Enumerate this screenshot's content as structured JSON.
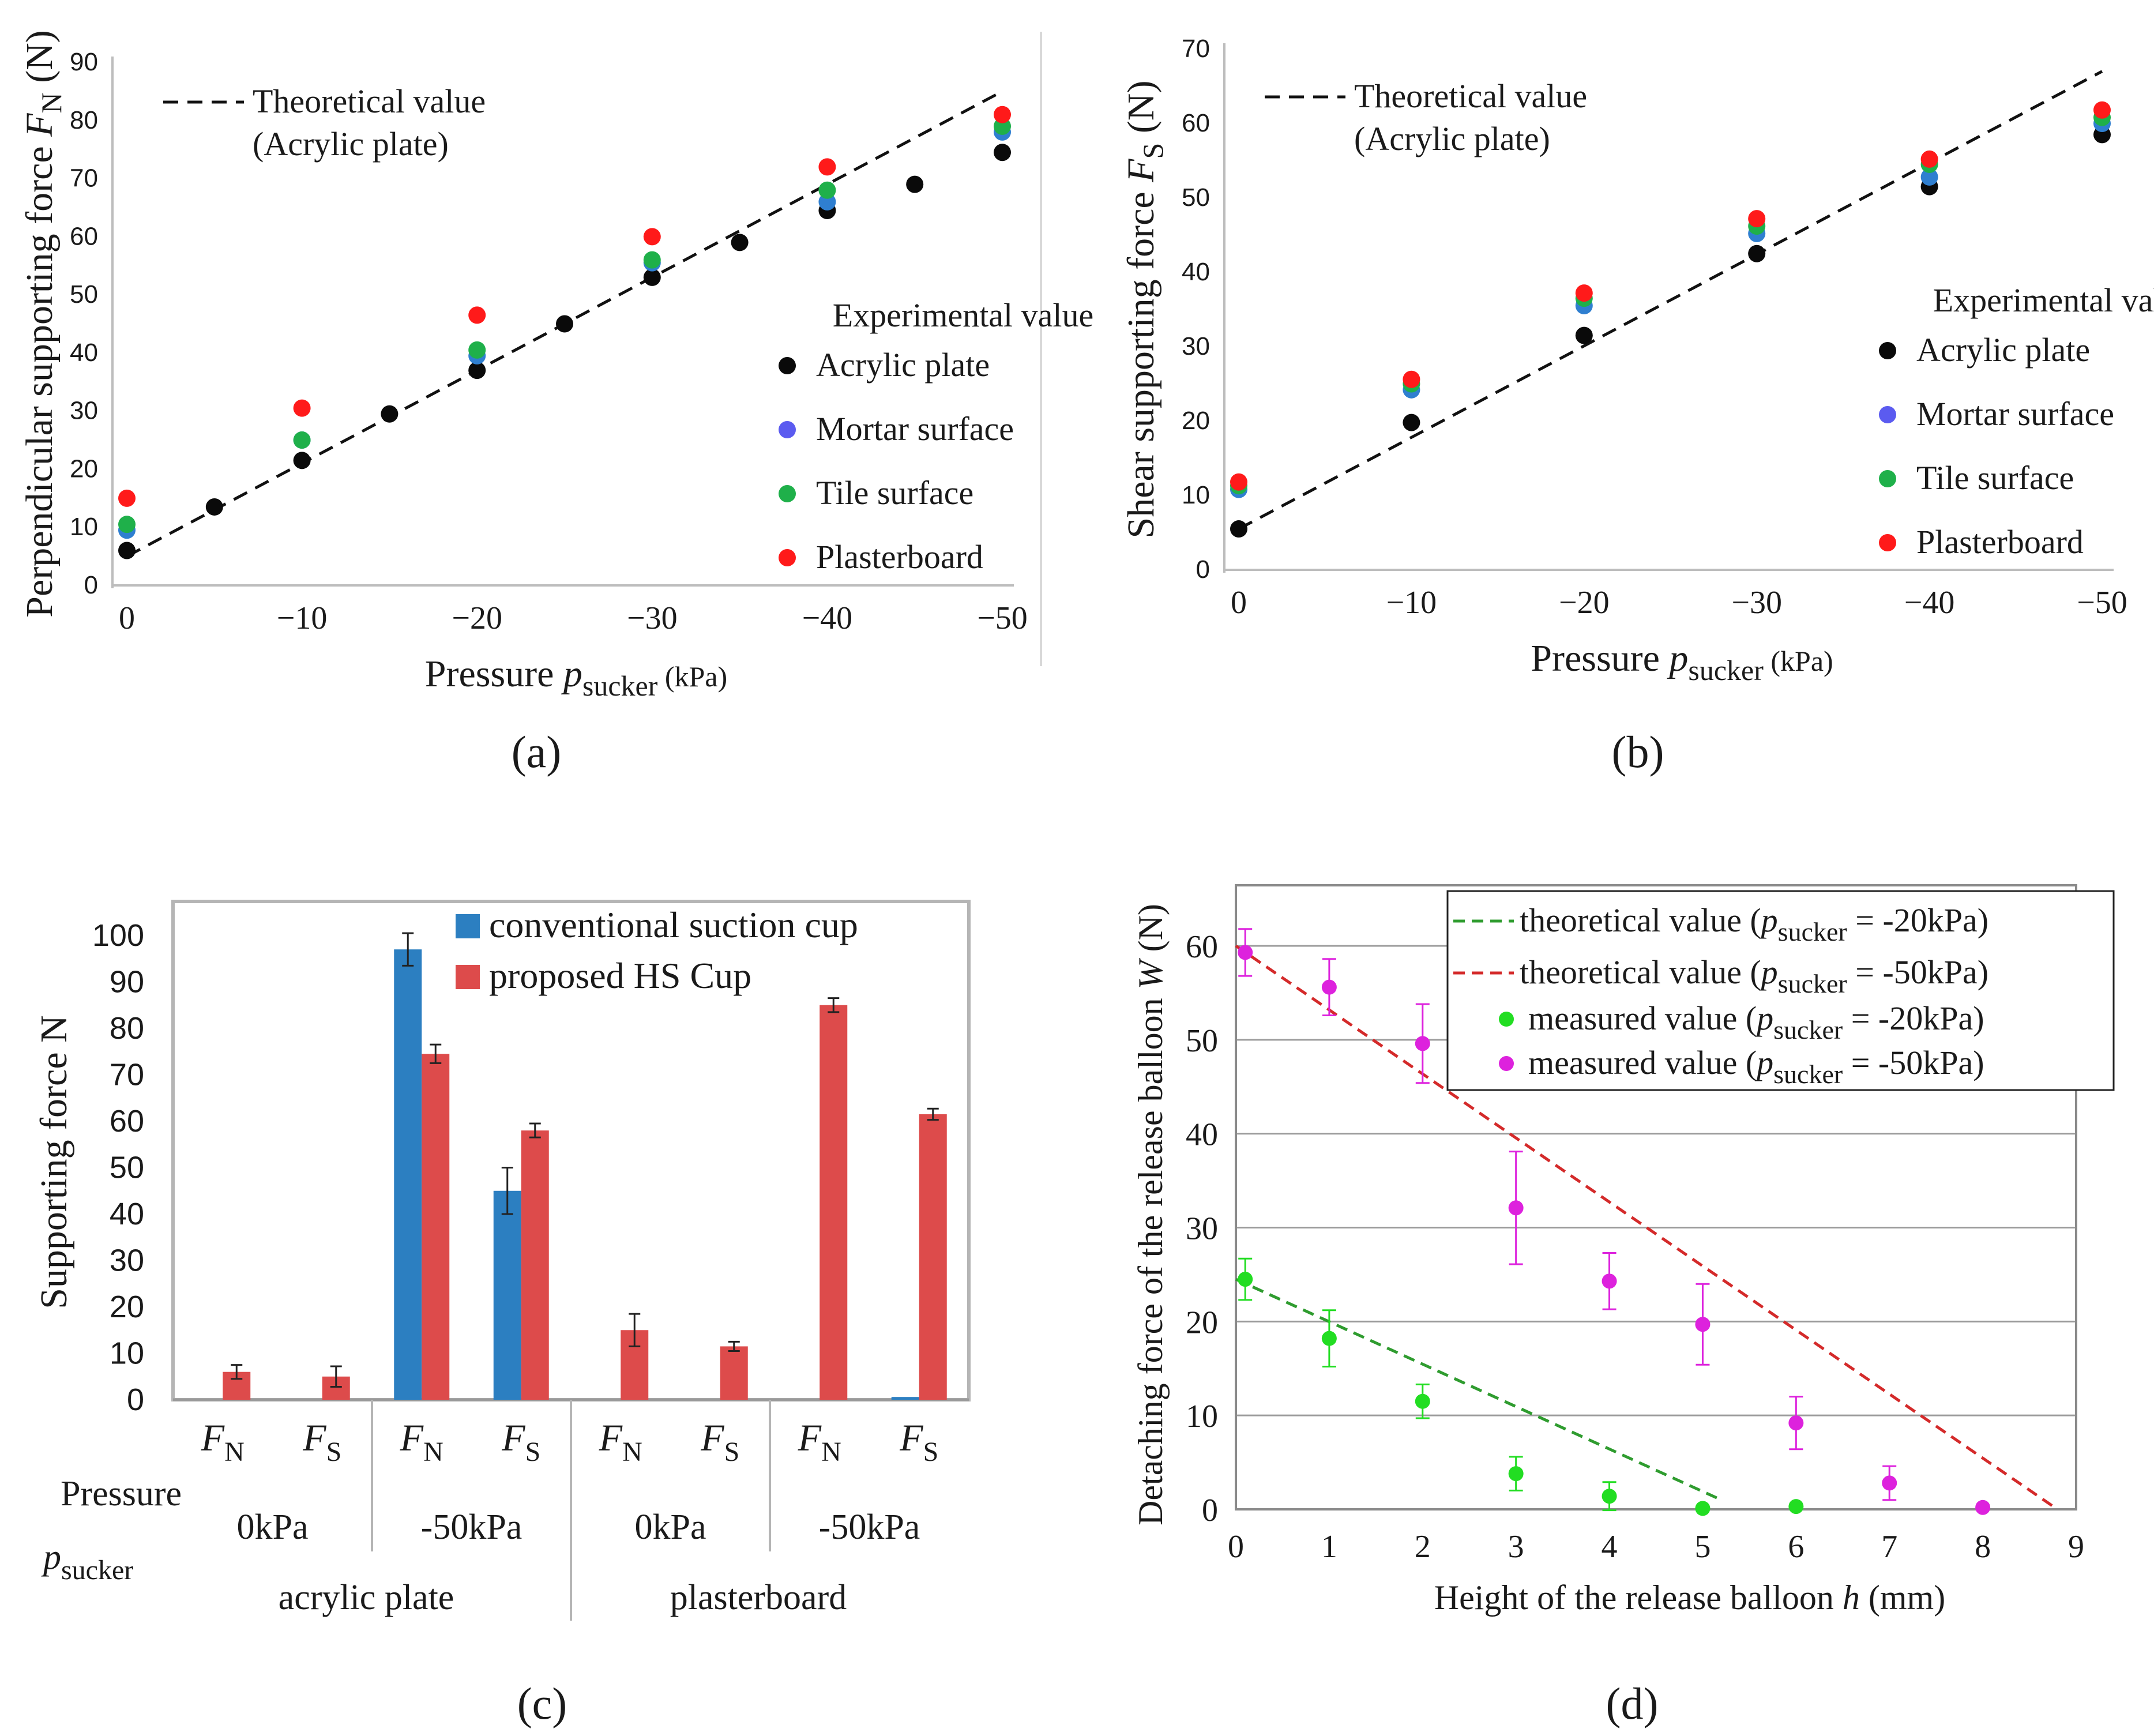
{
  "chart_data": [
    {
      "id": "a",
      "type": "scatter",
      "panel_label": "(a)",
      "xlabel": "Pressure p_sucker (kPa)",
      "xlabel_main": "Pressure ",
      "xlabel_var": "p",
      "xlabel_sub": "sucker",
      "xlabel_unit": " (kPa)",
      "ylabel_main": "Perpendicular supporting force ",
      "ylabel_var": "F",
      "ylabel_sub": "N",
      "ylabel_unit": " (N)",
      "xlim": [
        0,
        -50
      ],
      "ylim": [
        0,
        90
      ],
      "xticks": [
        0,
        -10,
        -20,
        -30,
        -40,
        -50
      ],
      "xtick_labels": [
        "0",
        "−10",
        "−20",
        "−30",
        "−40",
        "−50"
      ],
      "yticks": [
        0,
        10,
        20,
        30,
        40,
        50,
        60,
        70,
        80,
        90
      ],
      "ytick_labels": [
        "0",
        "10",
        "20",
        "30",
        "40",
        "50",
        "60",
        "70",
        "80",
        "90"
      ],
      "grid": false,
      "legend_position": "top-left and right",
      "theory": {
        "label_line1": "Theoretical value",
        "label_line2": "(Acrylic plate)",
        "x": [
          0,
          -50
        ],
        "y": [
          5,
          85
        ],
        "color": "#111111"
      },
      "legend_title": "Experimental value",
      "series": [
        {
          "name": "Acrylic plate",
          "color": "#0a0a0a",
          "x": [
            0,
            -5,
            -10,
            -15,
            -20,
            -25,
            -30,
            -35,
            -40,
            -45,
            -50
          ],
          "y": [
            6,
            13.5,
            21.5,
            29.5,
            37,
            45,
            53,
            59,
            64.5,
            69,
            74.5
          ]
        },
        {
          "name": "Mortar surface",
          "color": "#2f7fd0",
          "x": [
            0,
            -10,
            -20,
            -30,
            -40,
            -50
          ],
          "y": [
            9.5,
            25,
            39.5,
            55.5,
            66,
            78
          ]
        },
        {
          "name": "Tile surface",
          "color": "#1fb04a",
          "x": [
            0,
            -10,
            -20,
            -30,
            -40,
            -50
          ],
          "y": [
            10.5,
            25,
            40.5,
            56,
            68,
            79
          ]
        },
        {
          "name": "Plasterboard",
          "color": "#ff1a1a",
          "x": [
            0,
            -10,
            -20,
            -30,
            -40,
            -50
          ],
          "y": [
            15,
            30.5,
            46.5,
            60,
            72,
            81
          ]
        }
      ],
      "legend_marker_colors": [
        "#0a0a0a",
        "#5b5bf0",
        "#1fb04a",
        "#ff1a1a"
      ]
    },
    {
      "id": "b",
      "type": "scatter",
      "panel_label": "(b)",
      "xlabel": "Pressure p_sucker (kPa)",
      "xlabel_main": "Pressure ",
      "xlabel_var": "p",
      "xlabel_sub": "sucker",
      "xlabel_unit": " (kPa)",
      "ylabel_main": "Shear supporting force ",
      "ylabel_var": "F",
      "ylabel_sub": "S",
      "ylabel_unit": " (N)",
      "xlim": [
        0,
        -50
      ],
      "ylim": [
        0,
        70
      ],
      "xticks": [
        0,
        -10,
        -20,
        -30,
        -40,
        -50
      ],
      "xtick_labels": [
        "0",
        "−10",
        "−20",
        "−30",
        "−40",
        "−50"
      ],
      "yticks": [
        0,
        10,
        20,
        30,
        40,
        50,
        60,
        70
      ],
      "ytick_labels": [
        "0",
        "10",
        "20",
        "30",
        "40",
        "50",
        "60",
        "70"
      ],
      "grid": false,
      "legend_position": "top-left and right",
      "theory": {
        "label_line1": "Theoretical value",
        "label_line2": "(Acrylic plate)",
        "x": [
          0,
          -50
        ],
        "y": [
          5.5,
          67
        ],
        "color": "#111111"
      },
      "legend_title": "Experimental value",
      "series": [
        {
          "name": "Acrylic plate",
          "color": "#0a0a0a",
          "x": [
            0,
            -10,
            -20,
            -30,
            -40,
            -50
          ],
          "y": [
            5.5,
            19.8,
            31.5,
            42.5,
            51.5,
            58.5
          ]
        },
        {
          "name": "Mortar surface",
          "color": "#2f7fd0",
          "x": [
            0,
            -10,
            -20,
            -30,
            -40,
            -50
          ],
          "y": [
            10.8,
            24.2,
            35.5,
            45.2,
            52.8,
            60
          ]
        },
        {
          "name": "Tile surface",
          "color": "#1fb04a",
          "x": [
            0,
            -10,
            -20,
            -30,
            -40,
            -50
          ],
          "y": [
            11.3,
            25,
            36.5,
            46.2,
            54.5,
            60.8
          ]
        },
        {
          "name": "Plasterboard",
          "color": "#ff1a1a",
          "x": [
            0,
            -10,
            -20,
            -30,
            -40,
            -50
          ],
          "y": [
            11.8,
            25.6,
            37.2,
            47.2,
            55.2,
            61.8
          ]
        }
      ],
      "legend_marker_colors": [
        "#0a0a0a",
        "#5b5bf0",
        "#1fb04a",
        "#ff1a1a"
      ]
    },
    {
      "id": "c",
      "type": "bar",
      "panel_label": "(c)",
      "ylabel": "Supporting force N",
      "ylim": [
        0,
        105
      ],
      "yticks": [
        0,
        10,
        20,
        30,
        40,
        50,
        60,
        70,
        80,
        90,
        100
      ],
      "ytick_labels": [
        "0",
        "10",
        "20",
        "30",
        "40",
        "50",
        "60",
        "70",
        "80",
        "90",
        "100"
      ],
      "grid": false,
      "legend_position": "top-right",
      "categories": [
        "F_N",
        "F_S",
        "F_N",
        "F_S",
        "F_N",
        "F_S",
        "F_N",
        "F_S"
      ],
      "category_main": [
        "F",
        "F",
        "F",
        "F",
        "F",
        "F",
        "F",
        "F"
      ],
      "category_sub": [
        "N",
        "S",
        "N",
        "S",
        "N",
        "S",
        "N",
        "S"
      ],
      "pressure_title_line1": "Pressure",
      "pressure_title_var": "p",
      "pressure_title_sub": "sucker",
      "pressure_groups": [
        "0kPa",
        "-50kPa",
        "0kPa",
        "-50kPa"
      ],
      "surface_groups": [
        "acrylic plate",
        "plasterboard"
      ],
      "series": [
        {
          "name": "conventional suction cup",
          "color": "#2c7fc1",
          "values": [
            0,
            0,
            97,
            45,
            0,
            0,
            0,
            0.6
          ],
          "errors": [
            0,
            0,
            3.5,
            5,
            0,
            0,
            0,
            0
          ]
        },
        {
          "name": "proposed HS Cup",
          "color": "#dd4b4b",
          "values": [
            6,
            5,
            74.5,
            58,
            15,
            11.5,
            85,
            61.5
          ],
          "errors": [
            1.5,
            2.2,
            2,
            1.5,
            3.5,
            1,
            1.5,
            1.2
          ]
        }
      ]
    },
    {
      "id": "d",
      "type": "scatter",
      "panel_label": "(d)",
      "xlabel_main": "Height of the release balloon ",
      "xlabel_var": "h",
      "xlabel_unit": " (mm)",
      "ylabel_main": "Detaching force of the release balloon ",
      "ylabel_var": "W",
      "ylabel_unit": " (N)",
      "xlim": [
        0,
        9
      ],
      "ylim": [
        0,
        65
      ],
      "xticks": [
        0,
        1,
        2,
        3,
        4,
        5,
        6,
        7,
        8,
        9
      ],
      "xtick_labels": [
        "0",
        "1",
        "2",
        "3",
        "4",
        "5",
        "6",
        "7",
        "8",
        "9"
      ],
      "yticks": [
        0,
        10,
        20,
        30,
        40,
        50,
        60
      ],
      "ytick_labels": [
        "0",
        "10",
        "20",
        "30",
        "40",
        "50",
        "60"
      ],
      "grid": true,
      "legend_position": "top-right",
      "lines": [
        {
          "label_pre": "theoretical value (",
          "label_var": "p",
          "label_sub": "sucker",
          "label_post": " = -20kPa)",
          "color": "#2f9c2f",
          "x": [
            0,
            5.2
          ],
          "y": [
            24.5,
            1
          ]
        },
        {
          "label_pre": "theoretical value (",
          "label_var": "p",
          "label_sub": "sucker",
          "label_post": " = -50kPa)",
          "color": "#d42a2a",
          "x": [
            0,
            8.8
          ],
          "y": [
            60,
            0
          ]
        }
      ],
      "series": [
        {
          "label_pre": "measured value (",
          "label_var": "p",
          "label_sub": "sucker",
          "label_post": " = -20kPa)",
          "name": "measured value (p_sucker = -20kPa)",
          "color": "#22dd22",
          "x": [
            0.1,
            1,
            2,
            3,
            4,
            5,
            6
          ],
          "y": [
            24.5,
            18.2,
            11.5,
            3.8,
            1.4,
            0.1,
            0.3
          ],
          "errors": [
            2.2,
            3,
            1.8,
            1.8,
            1.5,
            0,
            0
          ]
        },
        {
          "label_pre": "measured value (",
          "label_var": "p",
          "label_sub": "sucker",
          "label_post": " = -50kPa)",
          "name": "measured value (p_sucker = -50kPa)",
          "color": "#dd22dd",
          "x": [
            0.1,
            1,
            2,
            3,
            4,
            5,
            6,
            7,
            8
          ],
          "y": [
            59.3,
            55.6,
            49.6,
            32.1,
            24.3,
            19.7,
            9.2,
            2.8,
            0.2
          ],
          "errors": [
            2.5,
            3,
            4.2,
            6,
            3,
            4.3,
            2.8,
            1.8,
            0
          ]
        }
      ]
    }
  ]
}
